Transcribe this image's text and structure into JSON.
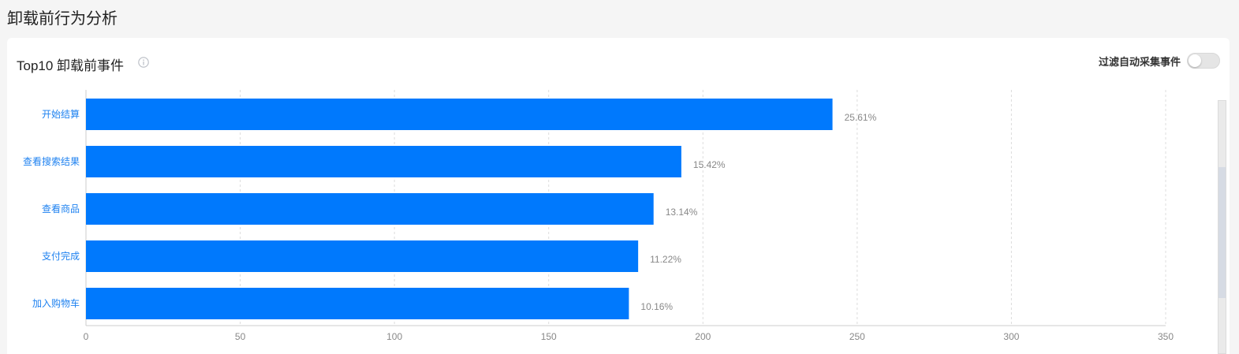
{
  "page": {
    "title": "卸载前行为分析"
  },
  "card": {
    "title": "Top10 卸载前事件",
    "info_icon": "info-icon",
    "filter_label": "过滤自动采集事件",
    "filter_on": false
  },
  "colors": {
    "bar": "#0079fd",
    "category_label": "#1f82f0",
    "value_label": "#888888",
    "grid": "#dddddd"
  },
  "chart_data": {
    "type": "bar",
    "orientation": "horizontal",
    "categories": [
      "开始结算",
      "查看搜索结果",
      "查看商品",
      "支付完成",
      "加入购物车"
    ],
    "values": [
      242,
      193,
      184,
      179,
      176
    ],
    "labels": [
      "25.61%",
      "15.42%",
      "13.14%",
      "11.22%",
      "10.16%"
    ],
    "xlim": [
      0,
      350
    ],
    "xticks": [
      0,
      50,
      100,
      150,
      200,
      250,
      300,
      350
    ],
    "grid": true,
    "title": "",
    "xlabel": "",
    "ylabel": ""
  }
}
